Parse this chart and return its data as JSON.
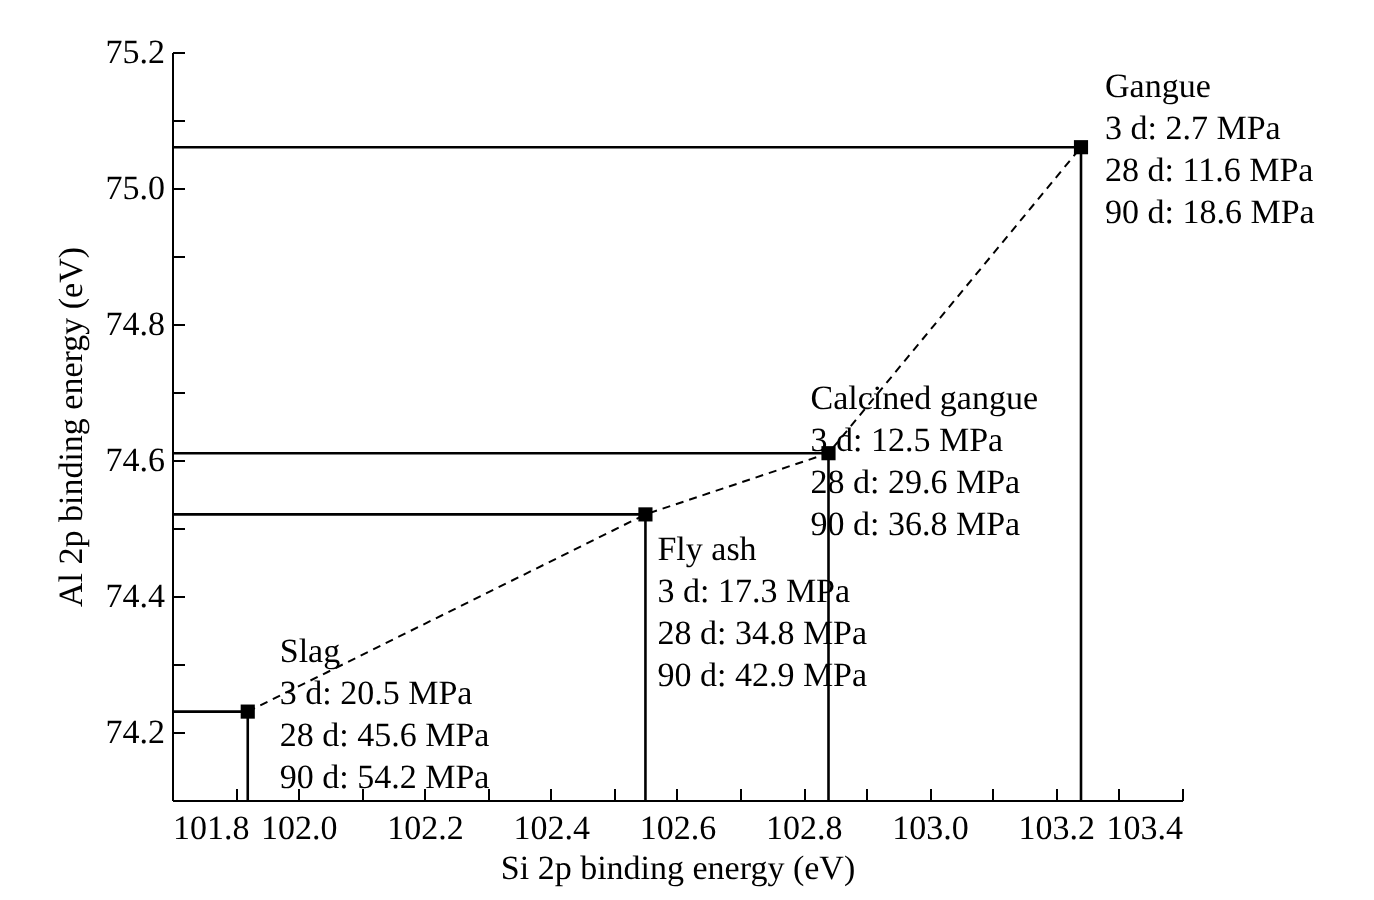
{
  "chart_data": {
    "type": "line",
    "xlabel": "Si 2p binding energy (eV)",
    "ylabel": "Al 2p binding energy (eV)",
    "x": [
      101.92,
      102.55,
      102.84,
      103.24
    ],
    "series": [
      {
        "color": "#000000",
        "values": [
          74.23,
          74.52,
          74.61,
          75.06
        ],
        "marker": "square",
        "line_style": "dashed"
      },
      {
        "color": "#000000",
        "x": [
          101.8,
          101.92
        ],
        "values": [
          74.23,
          74.23
        ],
        "line_style": "solid"
      },
      {
        "color": "#000000",
        "x": [
          101.8,
          102.55
        ],
        "values": [
          74.52,
          74.52
        ],
        "line_style": "solid"
      },
      {
        "color": "#000000",
        "x": [
          101.8,
          102.84
        ],
        "values": [
          74.61,
          74.61
        ],
        "line_style": "solid"
      },
      {
        "color": "#000000",
        "x": [
          101.8,
          103.24
        ],
        "values": [
          75.06,
          75.06
        ],
        "line_style": "solid"
      },
      {
        "color": "#000000",
        "x": [
          101.92,
          101.92
        ],
        "values": [
          74.1,
          74.23
        ],
        "line_style": "solid"
      },
      {
        "color": "#000000",
        "x": [
          102.55,
          102.55
        ],
        "values": [
          74.1,
          74.52
        ],
        "line_style": "solid"
      },
      {
        "color": "#000000",
        "x": [
          102.84,
          102.84
        ],
        "values": [
          74.1,
          74.61
        ],
        "line_style": "solid"
      },
      {
        "color": "#000000",
        "x": [
          103.24,
          103.24
        ],
        "values": [
          74.1,
          75.06
        ],
        "line_style": "solid"
      }
    ],
    "xlim": [
      101.8,
      103.4
    ],
    "ylim": [
      74.1,
      75.2
    ],
    "xticks": [
      101.8,
      {
        "value": 101.9,
        "label": null
      },
      "102.0",
      {
        "value": 102.1,
        "label": null
      },
      102.2,
      {
        "value": 102.3,
        "label": null
      },
      102.4,
      {
        "value": 102.5,
        "label": null
      },
      102.6,
      {
        "value": 102.7,
        "label": null
      },
      102.8,
      {
        "value": 102.9,
        "label": null
      },
      {
        "value": 103,
        "label": "103.0"
      },
      {
        "value": 103.1,
        "label": null
      },
      103.2,
      {
        "value": 103.3,
        "label": null
      },
      103.4
    ],
    "yticks": [
      {
        "value": 74.1,
        "label": null
      },
      74.2,
      {
        "value": 74.3,
        "label": null
      },
      74.4,
      {
        "value": 74.5,
        "label": null
      },
      74.6,
      {
        "value": 74.7,
        "label": null
      },
      74.8,
      {
        "value": 74.9,
        "label": null
      },
      {
        "value": 75,
        "label": "75.0"
      },
      {
        "value": 75.1,
        "label": null
      },
      75.2
    ],
    "annotations": [
      {
        "text": "Slag\n3 d: 20.5 MPa\n28 d: 45.6 MPa\n90 d: 54.2 MPa",
        "x": 101.92,
        "y": 74.23
      },
      {
        "text": "Fly ash\n3 d: 17.3 MPa\n28 d: 34.8 MPa\n90 d: 42.9 MPa",
        "x": 102.55,
        "y": 74.52
      },
      {
        "text": "Calcined gangue\n3 d: 12.5 MPa\n28 d: 29.6 MPa\n90 d: 36.8 MPa",
        "x": 102.84,
        "y": 74.61
      },
      {
        "text": "Gangue\n3 d: 2.7 MPa\n28 d: 11.6 MPa\n90 d: 18.6 MPa",
        "x": 103.24,
        "y": 75.06
      }
    ]
  }
}
